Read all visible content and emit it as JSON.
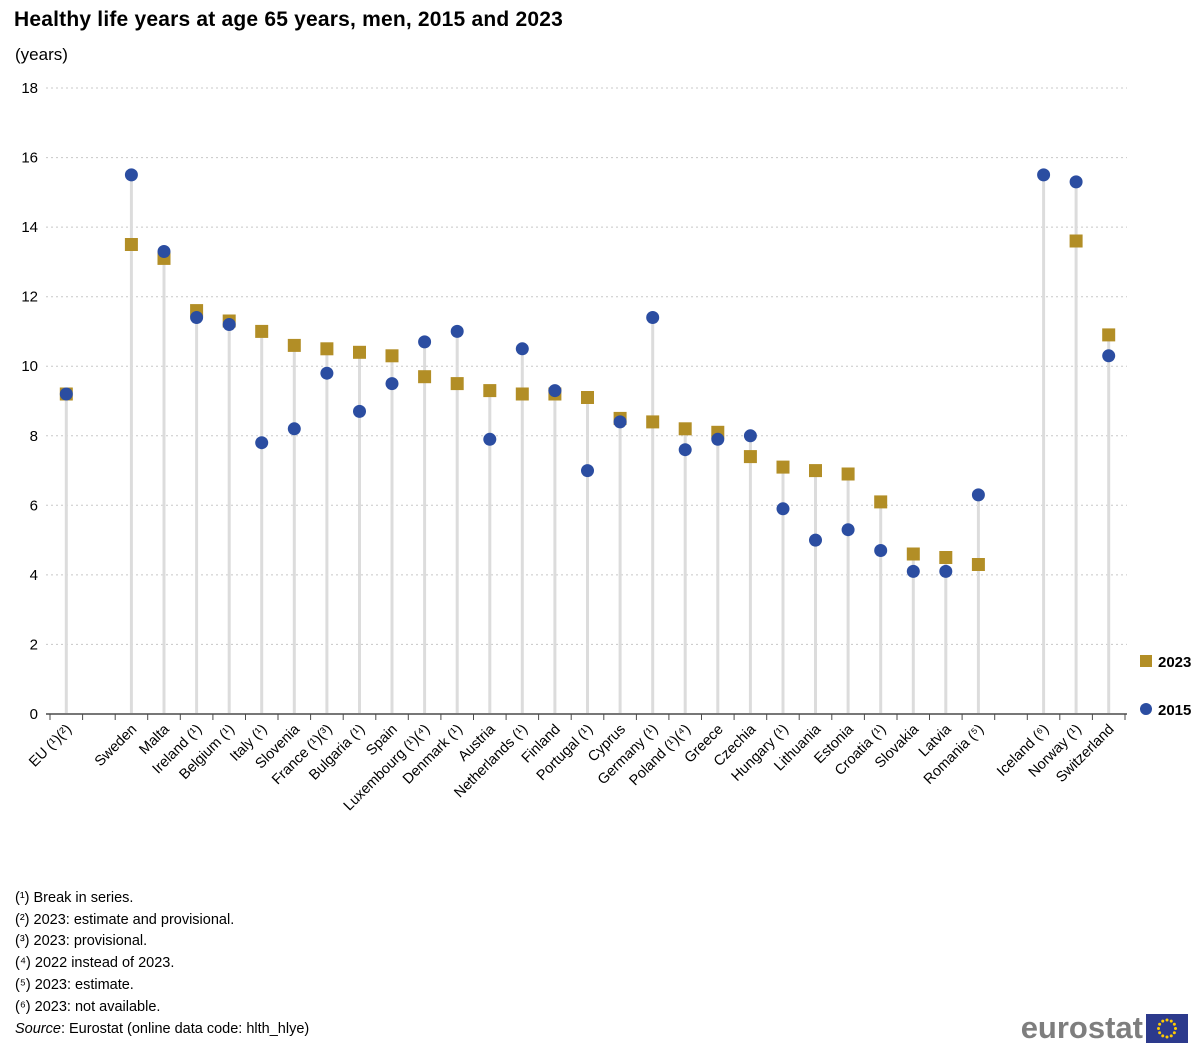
{
  "title": "Healthy life years at age 65 years, men, 2015 and 2023",
  "subtitle": "(years)",
  "legend": {
    "label_2023": "2023",
    "label_2015": "2015"
  },
  "footnotes": [
    "(¹) Break in series.",
    "(²) 2023: estimate and provisional.",
    "(³) 2023: provisional.",
    "(⁴) 2022 instead of 2023.",
    "(⁵) 2023: estimate.",
    "(⁶) 2023: not available."
  ],
  "source": {
    "label": "Source",
    "text": ": Eurostat (online data code: hlth_hlye)"
  },
  "logo": {
    "text": "eurostat"
  },
  "colors": {
    "gold": "#b28e26",
    "blue": "#2b4da1",
    "stem": "#dcdcdc",
    "grid": "#c8c8c8",
    "axis": "#4a4a4a",
    "flag_blue": "#2c3a8c",
    "flag_star": "#ffcc00"
  },
  "chart_data": {
    "type": "scatter",
    "title": "Healthy life years at age 65 years, men, 2015 and 2023",
    "ylabel": "(years)",
    "ylim": [
      0,
      18
    ],
    "y_ticks": [
      0,
      2,
      4,
      6,
      8,
      10,
      12,
      14,
      16,
      18
    ],
    "grid": true,
    "legend_position": "right",
    "slots": [
      "EU (¹)(²)",
      null,
      "Sweden",
      "Malta",
      "Ireland (¹)",
      "Belgium (¹)",
      "Italy (¹)",
      "Slovenia",
      "France (¹)(³)",
      "Bulgaria (¹)",
      "Spain",
      "Luxembourg (¹)(⁴)",
      "Denmark (¹)",
      "Austria",
      "Netherlands (¹)",
      "Finland",
      "Portugal (¹)",
      "Cyprus",
      "Germany (¹)",
      "Poland (¹)(⁴)",
      "Greece",
      "Czechia",
      "Hungary (¹)",
      "Lithuania",
      "Estonia",
      "Croatia (¹)",
      "Slovakia",
      "Latvia",
      "Romania (⁵)",
      null,
      "Iceland (⁶)",
      "Norway (¹)",
      "Switzerland"
    ],
    "series": [
      {
        "name": "2023",
        "marker": "square",
        "color": "#b28e26",
        "values": [
          9.2,
          null,
          13.5,
          13.1,
          11.6,
          11.3,
          11.0,
          10.6,
          10.5,
          10.4,
          10.3,
          9.7,
          9.5,
          9.3,
          9.2,
          9.2,
          9.1,
          8.5,
          8.4,
          8.2,
          8.1,
          7.4,
          7.1,
          7.0,
          6.9,
          6.1,
          4.6,
          4.5,
          4.3,
          null,
          null,
          13.6,
          10.9
        ]
      },
      {
        "name": "2015",
        "marker": "circle",
        "color": "#2b4da1",
        "values": [
          9.2,
          null,
          15.5,
          13.3,
          11.4,
          11.2,
          7.8,
          8.2,
          9.8,
          8.7,
          9.5,
          10.7,
          11.0,
          7.9,
          10.5,
          9.3,
          7.0,
          8.4,
          11.4,
          7.6,
          7.9,
          8.0,
          5.9,
          5.0,
          5.3,
          4.7,
          4.1,
          4.1,
          6.3,
          null,
          15.5,
          15.3,
          10.3
        ]
      }
    ]
  }
}
